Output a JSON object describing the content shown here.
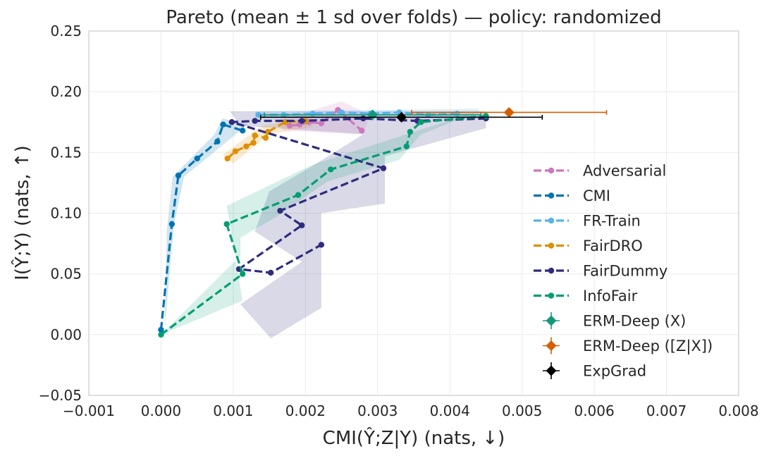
{
  "chart_data": {
    "type": "line",
    "title": "Pareto (mean ± 1 sd over folds) — policy: randomized",
    "xlabel": "CMI(Ŷ;Z|Y) (nats, ↓)",
    "ylabel": "I(Ŷ;Y) (nats, ↑)",
    "xlim": [
      -0.001,
      0.008
    ],
    "ylim": [
      -0.05,
      0.25
    ],
    "xticks": [
      "−0.001",
      "0.000",
      "0.001",
      "0.002",
      "0.003",
      "0.004",
      "0.005",
      "0.006",
      "0.007",
      "0.008"
    ],
    "yticks": [
      "−0.05",
      "0.00",
      "0.05",
      "0.10",
      "0.15",
      "0.20",
      "0.25"
    ],
    "grid": true,
    "legend_position": "lower-right",
    "series": [
      {
        "name": "Adversarial",
        "color": "#cc78bc",
        "style": "dashed-line-markers",
        "x": [
          0.00178,
          0.00192,
          0.00205,
          0.00222,
          0.00245,
          0.00278
        ],
        "y": [
          0.172,
          0.173,
          0.175,
          0.174,
          0.185,
          0.168
        ]
      },
      {
        "name": "CMI",
        "color": "#0173b2",
        "style": "dashed-line-markers",
        "x": [
          0.0,
          0.00015,
          0.00024,
          0.0005,
          0.00078,
          0.00086,
          0.00113
        ],
        "y": [
          0.004,
          0.091,
          0.131,
          0.145,
          0.159,
          0.173,
          0.168
        ]
      },
      {
        "name": "FR-Train",
        "color": "#56b4e9",
        "style": "dashed-line-markers",
        "x": [
          0.00135,
          0.0017,
          0.0021,
          0.0025,
          0.0029,
          0.0033,
          0.0037,
          0.0041
        ],
        "y": [
          0.181,
          0.181,
          0.182,
          0.183,
          0.182,
          0.183,
          0.181,
          0.182
        ]
      },
      {
        "name": "FairDRO",
        "color": "#de8f05",
        "style": "dashed-line-markers",
        "x": [
          0.00092,
          0.00103,
          0.00118,
          0.00128,
          0.0013,
          0.00145,
          0.00148,
          0.00172,
          0.002
        ],
        "y": [
          0.145,
          0.151,
          0.155,
          0.158,
          0.164,
          0.162,
          0.167,
          0.175,
          0.176
        ]
      },
      {
        "name": "FairDummy",
        "color": "#2f2c7d",
        "style": "dashed-line-markers",
        "x": [
          0.0045,
          0.00355,
          0.0028,
          0.00195,
          0.0013,
          0.00098,
          0.00308,
          0.00165,
          0.00195,
          0.00108,
          0.00152,
          0.00222
        ],
        "y": [
          0.178,
          0.176,
          0.178,
          0.176,
          0.176,
          0.175,
          0.137,
          0.102,
          0.09,
          0.054,
          0.051,
          0.074
        ]
      },
      {
        "name": "InfoFair",
        "color": "#029e73",
        "style": "dashed-line-markers",
        "x": [
          0.0,
          0.00113,
          0.00091,
          0.0019,
          0.00235,
          0.0034,
          0.00345,
          0.0036,
          0.0045
        ],
        "y": [
          0.0,
          0.05,
          0.091,
          0.115,
          0.136,
          0.155,
          0.167,
          0.175,
          0.18
        ]
      },
      {
        "name": "ERM-Deep (X)",
        "color": "#17977a",
        "style": "diamond-errorbar",
        "x": [
          0.00293
        ],
        "y": [
          0.181
        ],
        "xerr": [
          0.0015
        ],
        "yerr": [
          0.004
        ]
      },
      {
        "name": "ERM-Deep ([Z|X])",
        "color": "#d55e00",
        "style": "diamond-errorbar",
        "x": [
          0.00482
        ],
        "y": [
          0.183
        ],
        "xerr": [
          0.00135
        ],
        "yerr": [
          0.003
        ]
      },
      {
        "name": "ExpGrad",
        "color": "#000000",
        "style": "diamond-errorbar",
        "x": [
          0.00333
        ],
        "y": [
          0.179
        ],
        "xerr": [
          0.00195
        ],
        "yerr": [
          0.004
        ]
      }
    ]
  }
}
